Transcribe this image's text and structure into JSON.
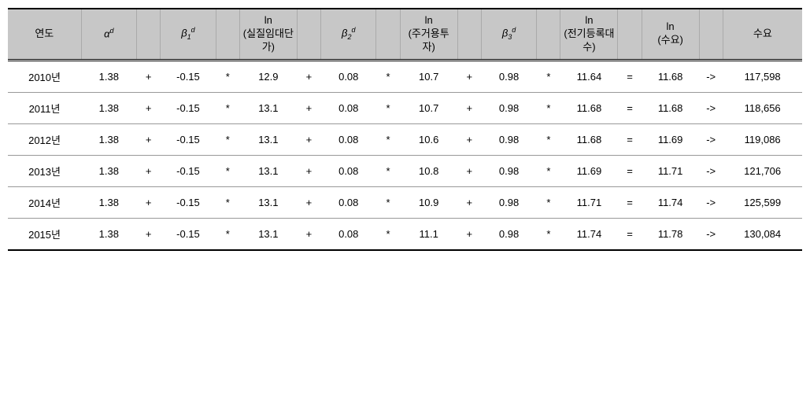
{
  "headers": {
    "year": "연도",
    "alpha_base": "α",
    "alpha_sup": "d",
    "beta1_base": "β",
    "beta1_sub": "1",
    "beta1_sup": "d",
    "ln1_top": "ln",
    "ln1_mid": "(실질임대단가)",
    "beta2_base": "β",
    "beta2_sub": "2",
    "beta2_sup": "d",
    "ln2_top": "ln",
    "ln2_mid": "(주거용투자)",
    "beta3_base": "β",
    "beta3_sub": "3",
    "beta3_sup": "d",
    "ln3_top": "ln",
    "ln3_mid": "(전기등록대수)",
    "lnres_top": "ln",
    "lnres_mid": "(수요)",
    "demand": "수요"
  },
  "ops": {
    "plus": "+",
    "star": "*",
    "eq": "=",
    "arrow": "->"
  },
  "rows": [
    {
      "year": "2010년",
      "alpha": "1.38",
      "b1": "-0.15",
      "ln1": "12.9",
      "b2": "0.08",
      "ln2": "10.7",
      "b3": "0.98",
      "ln3": "11.64",
      "lnres": "11.68",
      "demand": "117,598"
    },
    {
      "year": "2011년",
      "alpha": "1.38",
      "b1": "-0.15",
      "ln1": "13.1",
      "b2": "0.08",
      "ln2": "10.7",
      "b3": "0.98",
      "ln3": "11.68",
      "lnres": "11.68",
      "demand": "118,656"
    },
    {
      "year": "2012년",
      "alpha": "1.38",
      "b1": "-0.15",
      "ln1": "13.1",
      "b2": "0.08",
      "ln2": "10.6",
      "b3": "0.98",
      "ln3": "11.68",
      "lnres": "11.69",
      "demand": "119,086"
    },
    {
      "year": "2013년",
      "alpha": "1.38",
      "b1": "-0.15",
      "ln1": "13.1",
      "b2": "0.08",
      "ln2": "10.8",
      "b3": "0.98",
      "ln3": "11.69",
      "lnres": "11.71",
      "demand": "121,706"
    },
    {
      "year": "2014년",
      "alpha": "1.38",
      "b1": "-0.15",
      "ln1": "13.1",
      "b2": "0.08",
      "ln2": "10.9",
      "b3": "0.98",
      "ln3": "11.71",
      "lnres": "11.74",
      "demand": "125,599"
    },
    {
      "year": "2015년",
      "alpha": "1.38",
      "b1": "-0.15",
      "ln1": "13.1",
      "b2": "0.08",
      "ln2": "11.1",
      "b3": "0.98",
      "ln3": "11.74",
      "lnres": "11.78",
      "demand": "130,084"
    }
  ]
}
